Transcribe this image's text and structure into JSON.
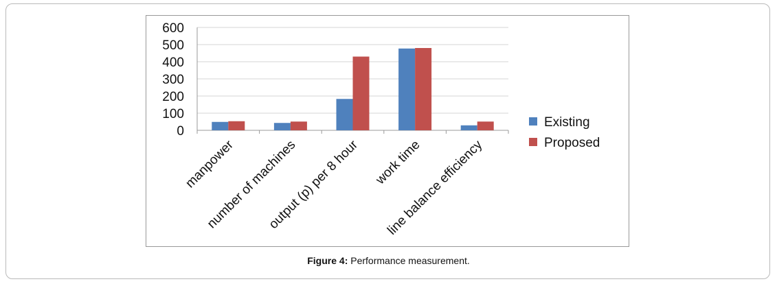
{
  "chart_data": {
    "type": "bar",
    "categories": [
      "manpower",
      "number of machines",
      "output (p) per 8 hour",
      "work  time",
      "line balance efficiency"
    ],
    "series": [
      {
        "name": "Existing",
        "color": "#4f81bd",
        "values": [
          49,
          43,
          183,
          477,
          29
        ]
      },
      {
        "name": "Proposed",
        "color": "#c0504d",
        "values": [
          53,
          51,
          430,
          480,
          51
        ]
      }
    ],
    "yticks": [
      0,
      100,
      200,
      300,
      400,
      500,
      600
    ],
    "ylim": [
      0,
      600
    ],
    "grid": true,
    "legend": "right"
  },
  "caption": {
    "label": "Figure 4:",
    "text": " Performance measurement."
  }
}
